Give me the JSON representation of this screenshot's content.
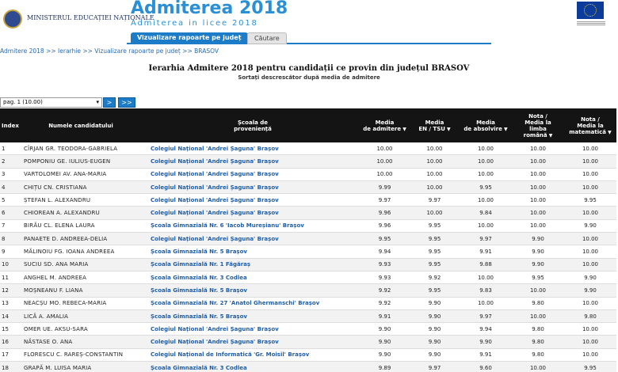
{
  "header": {
    "ministry": "MINISTERUL EDUCAȚIEI NAȚIONALE",
    "title": "Admiterea 2018",
    "subtitle": "Admiterea in licee 2018",
    "tabs": [
      "Vizualizare rapoarte pe județ",
      "Căutare"
    ]
  },
  "breadcrumb": "Admitere 2018 >> Ierarhie >> Vizualizare rapoarte pe județ >> BRASOV",
  "report": {
    "title": "Ierarhia Admitere 2018 pentru candidații ce provin din județul BRASOV",
    "subtitle": "Sortați descrescător după media de admitere"
  },
  "pager": {
    "select": "pag. 1 (10.00)",
    "buttons": [
      ">",
      ">>"
    ]
  },
  "table": {
    "columns": [
      "Index",
      "Numele candidatului",
      "Școala de\nproveniență",
      "Media\nde admitere",
      "Media\nEN / TSU",
      "Media\nde absolvire",
      "Nota /\nMedia la\nlimba\nromână",
      "Nota /\nMedia la\nmatematică"
    ],
    "rows": [
      [
        "1",
        "CÎRJAN GR. TEODORA-GABRIELA",
        "Colegiul Național 'Andrei Șaguna' Brașov",
        "10.00",
        "10.00",
        "10.00",
        "10.00",
        "10.00"
      ],
      [
        "2",
        "POMPONIU GE. IULIUS-EUGEN",
        "Colegiul Național 'Andrei Șaguna' Brașov",
        "10.00",
        "10.00",
        "10.00",
        "10.00",
        "10.00"
      ],
      [
        "3",
        "VARTOLOMEI AV. ANA-MARIA",
        "Colegiul Național 'Andrei Șaguna' Brașov",
        "10.00",
        "10.00",
        "10.00",
        "10.00",
        "10.00"
      ],
      [
        "4",
        "CHIȚU CN. CRISTIANA",
        "Colegiul Național 'Andrei Șaguna' Brașov",
        "9.99",
        "10.00",
        "9.95",
        "10.00",
        "10.00"
      ],
      [
        "5",
        "ȘTEFAN L. ALEXANDRU",
        "Colegiul Național 'Andrei Șaguna' Brașov",
        "9.97",
        "9.97",
        "10.00",
        "10.00",
        "9.95"
      ],
      [
        "6",
        "CHIOREAN A. ALEXANDRU",
        "Colegiul Național 'Andrei Șaguna' Brașov",
        "9.96",
        "10.00",
        "9.84",
        "10.00",
        "10.00"
      ],
      [
        "7",
        "BIRĂU CL. ELENA LAURA",
        "Școala Gimnazială Nr. 6 'Iacob Mureșianu' Brașov",
        "9.96",
        "9.95",
        "10.00",
        "10.00",
        "9.90"
      ],
      [
        "8",
        "PANAETE D. ANDREEA-DELIA",
        "Colegiul Național 'Andrei Șaguna' Brașov",
        "9.95",
        "9.95",
        "9.97",
        "9.90",
        "10.00"
      ],
      [
        "9",
        "MĂLINOIU FG. IOANA ANDREEA",
        "Școala Gimnazială Nr. 5 Brașov",
        "9.94",
        "9.95",
        "9.91",
        "9.90",
        "10.00"
      ],
      [
        "10",
        "SUCIU SD. ANA MARIA",
        "Școala Gimnazială Nr. 1 Făgăraș",
        "9.93",
        "9.95",
        "9.88",
        "9.90",
        "10.00"
      ],
      [
        "11",
        "ANGHEL M. ANDREEA",
        "Școala Gimnazială Nr. 3 Codlea",
        "9.93",
        "9.92",
        "10.00",
        "9.95",
        "9.90"
      ],
      [
        "12",
        "MOȘNEANU F. LIANA",
        "Școala Gimnazială Nr. 5 Brașov",
        "9.92",
        "9.95",
        "9.83",
        "10.00",
        "9.90"
      ],
      [
        "13",
        "NEACȘU MO. REBECA-MARIA",
        "Școala Gimnazială Nr. 27 'Anatol Ghermanschi' Brașov",
        "9.92",
        "9.90",
        "10.00",
        "9.80",
        "10.00"
      ],
      [
        "14",
        "LICĂ A. AMALIA",
        "Școala Gimnazială Nr. 5 Brașov",
        "9.91",
        "9.90",
        "9.97",
        "10.00",
        "9.80"
      ],
      [
        "15",
        "OMER UE. AKSU-SARA",
        "Colegiul Național 'Andrei Șaguna' Brașov",
        "9.90",
        "9.90",
        "9.94",
        "9.80",
        "10.00"
      ],
      [
        "16",
        "NĂSTASE O. ANA",
        "Colegiul Național 'Andrei Șaguna' Brașov",
        "9.90",
        "9.90",
        "9.90",
        "9.80",
        "10.00"
      ],
      [
        "17",
        "FLORESCU C. RAREȘ-CONSTANTIN",
        "Colegiul Național de Informatică 'Gr. Moisil' Brașov",
        "9.90",
        "9.90",
        "9.91",
        "9.80",
        "10.00"
      ],
      [
        "18",
        "GRAPĂ M. LUISA MARIA",
        "Școala Gimnazială Nr. 3 Codlea",
        "9.89",
        "9.97",
        "9.60",
        "10.00",
        "9.95"
      ]
    ]
  }
}
